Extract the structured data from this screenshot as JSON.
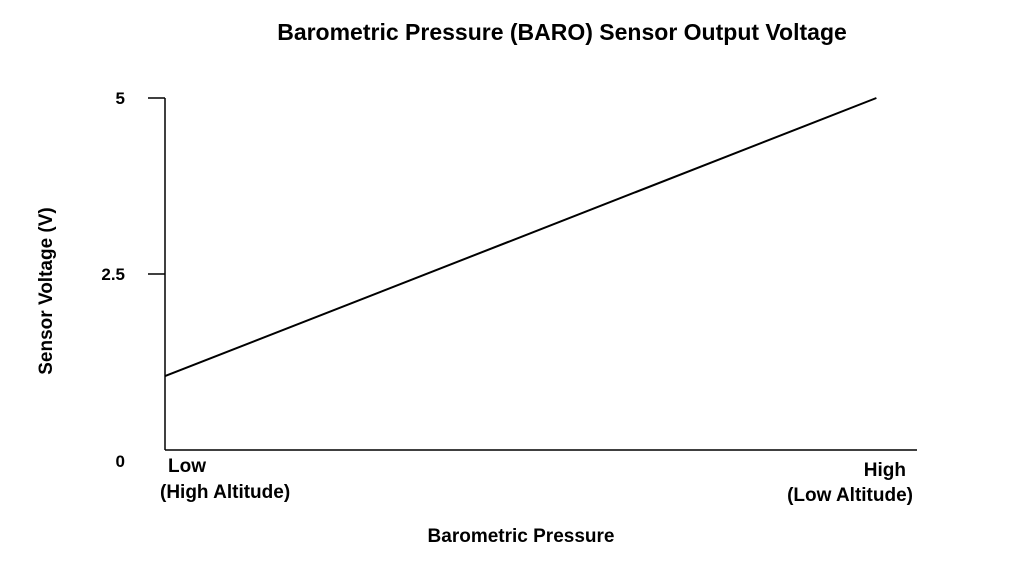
{
  "chart_data": {
    "type": "line",
    "title": "Barometric Pressure (BARO) Sensor Output Voltage",
    "xlabel": "Barometric Pressure",
    "ylabel": "Sensor Voltage (V)",
    "x_tick_labels": [
      {
        "lines": [
          "Low",
          "(High Altitude)"
        ]
      },
      {
        "lines": [
          "High",
          "(Low Altitude)"
        ]
      }
    ],
    "y_ticks": [
      {
        "value": 0,
        "label": "0"
      },
      {
        "value": 2.5,
        "label": "2.5"
      },
      {
        "value": 5,
        "label": "5"
      }
    ],
    "ylim": [
      0,
      5.2
    ],
    "xlim": [
      0,
      1
    ],
    "series": [
      {
        "x": [
          0,
          0.946
        ],
        "y": [
          1.05,
          5.0
        ]
      }
    ],
    "grid": false,
    "legend": "none",
    "line_color": "#000000"
  }
}
